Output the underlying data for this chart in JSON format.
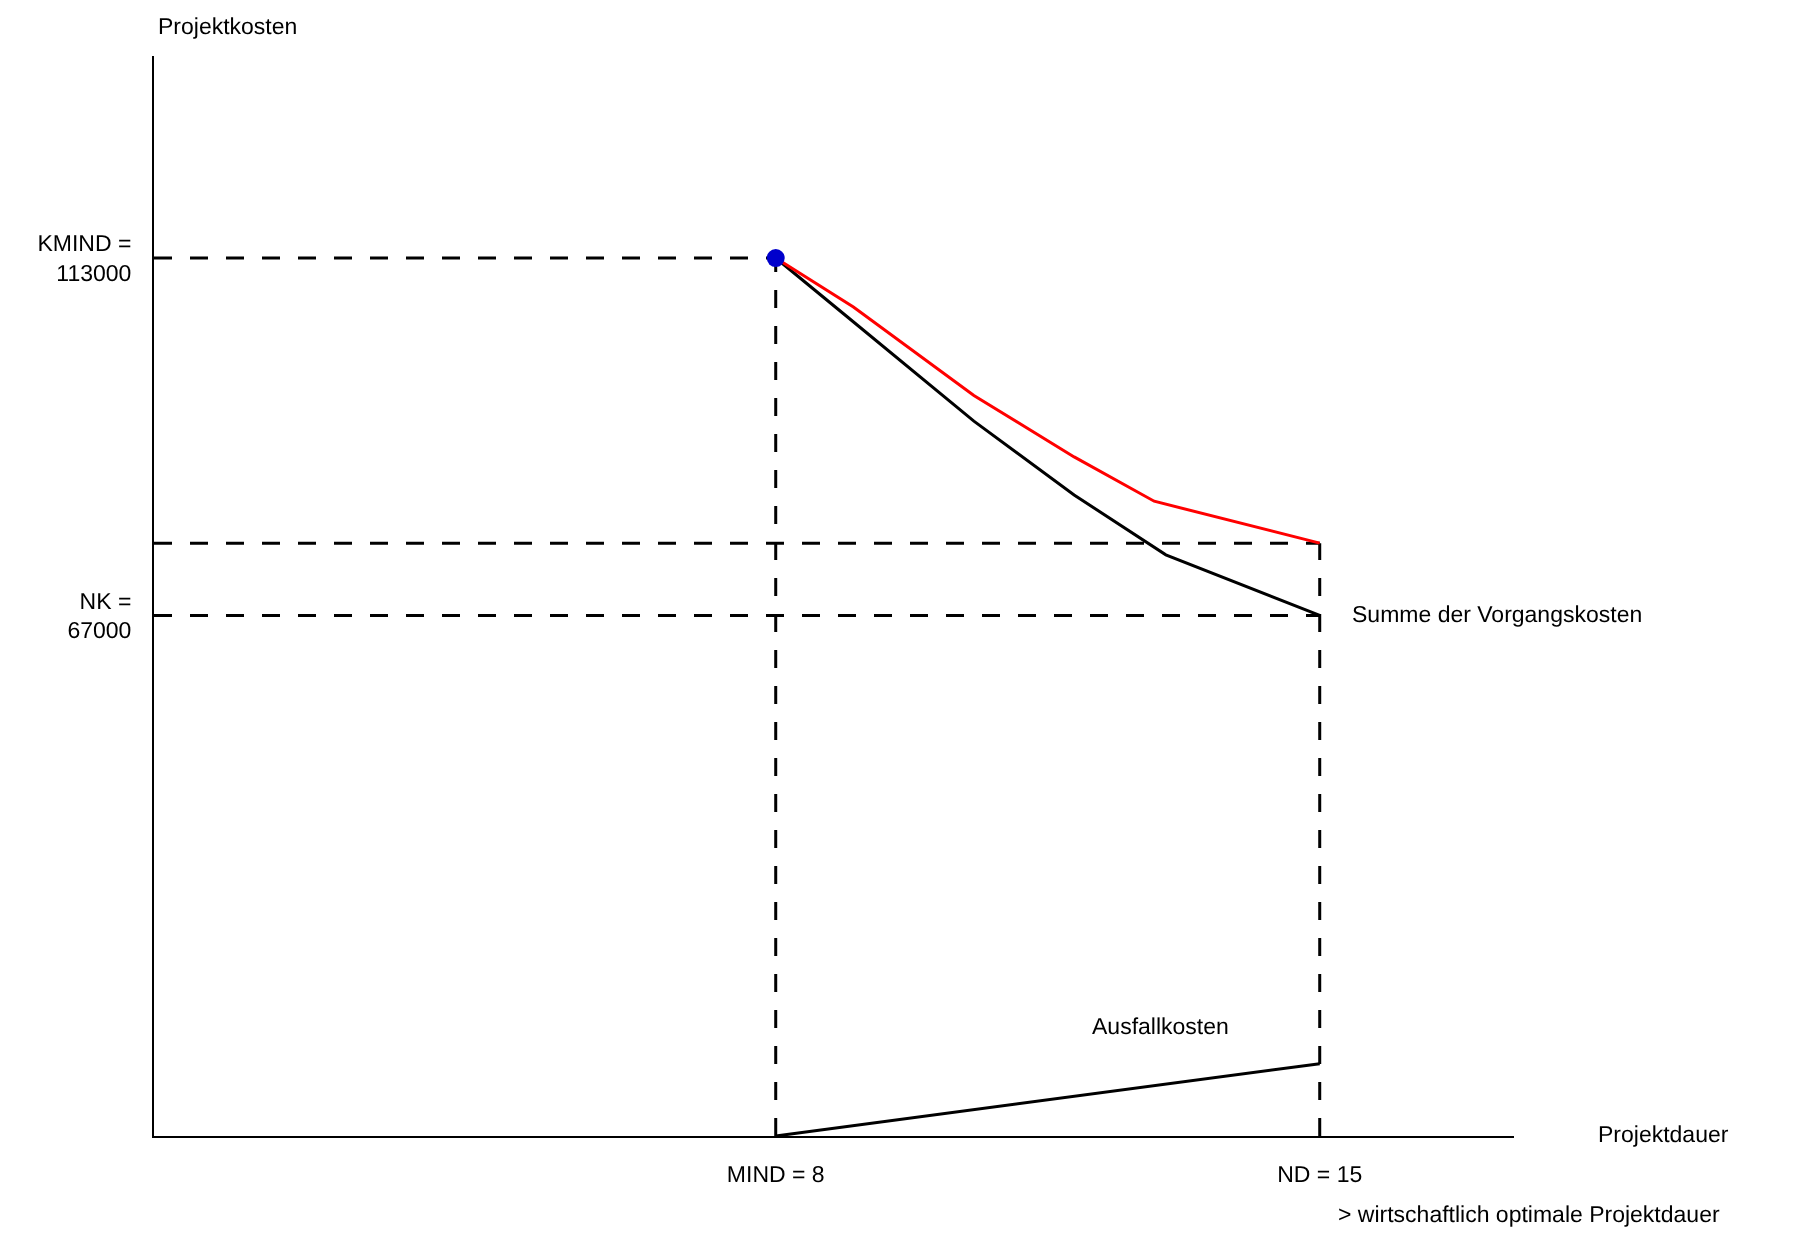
{
  "chart_data": {
    "type": "line",
    "xlabel": "Projektdauer",
    "ylabel": "Projektkosten",
    "xlim": [
      0,
      17.5
    ],
    "ylim": [
      0,
      139000
    ],
    "xticks": [
      {
        "value": 8,
        "label": "MIND = 8"
      },
      {
        "value": 15,
        "label": "ND = 15"
      }
    ],
    "yticks": [
      {
        "value": 113000,
        "label": "KMIND =\n113000"
      },
      {
        "value": 67000,
        "label": "NK =\n67000"
      }
    ],
    "grid": false,
    "marker": "none",
    "line_style": "solid",
    "series": [
      {
        "color": "#000000",
        "line_style": "dashed",
        "x": [
          0,
          8
        ],
        "values": [
          113000,
          113000
        ]
      },
      {
        "color": "#000000",
        "line_style": "dashed",
        "x": [
          8,
          8
        ],
        "values": [
          0,
          113000
        ]
      },
      {
        "color": "#000000",
        "line_style": "dashed",
        "x": [
          0,
          15
        ],
        "values": [
          67000,
          67000
        ]
      },
      {
        "color": "#000000",
        "line_style": "dashed",
        "x": [
          0,
          15
        ],
        "values": [
          76300,
          76300
        ]
      },
      {
        "color": "#000000",
        "line_style": "dashed",
        "x": [
          15,
          15
        ],
        "values": [
          0,
          76300
        ]
      },
      {
        "color": "#000000",
        "x": [
          8,
          8.9,
          10.55,
          11.84,
          13.02,
          15
        ],
        "values": [
          113000,
          105600,
          92000,
          82500,
          74800,
          67000
        ]
      },
      {
        "color": "#000000",
        "x": [
          8,
          15
        ],
        "values": [
          0,
          9300
        ]
      },
      {
        "color": "#ff0000",
        "x": [
          8,
          9,
          10.55,
          11.84,
          12.87,
          15
        ],
        "values": [
          113000,
          106700,
          95300,
          87400,
          81700,
          76300
        ]
      },
      {
        "type": "scatter",
        "marker": "circle",
        "color": "#0000cc",
        "x": [
          8
        ],
        "values": [
          113000
        ]
      }
    ],
    "annotations": [
      {
        "text": "Summe der Vorgangskosten",
        "x": 15,
        "y": 67000
      },
      "Ausfallkosten",
      "> wirtschaftlich optimale Projektdauer"
    ]
  }
}
